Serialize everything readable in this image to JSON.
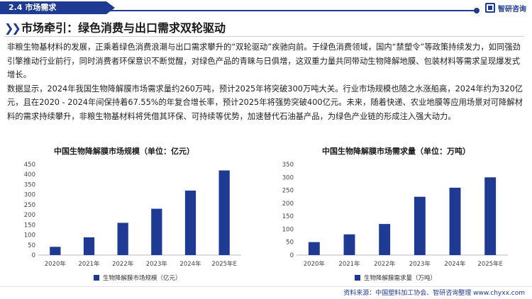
{
  "header": {
    "section_label": "2.4 市场需求",
    "logo_text": "智研咨询"
  },
  "banner": {
    "title": "市场牵引：绿色消费与出口需求双轮驱动"
  },
  "paragraphs": [
    "非粮生物基材料的发展，正乘着绿色消费浪潮与出口需求攀升的“双轮驱动”疾驰向前。于绿色消费领域，国内“禁塑令”等政策持续发力，如同强劲引擎推动行业前行，同时消费者环保意识不断觉醒，对绿色产品的青睐与日俱增，这双重力量共同带动生物降解地膜、包装材料等需求呈现爆发式增长。",
    "数据显示，2024年我国生物降解膜市场需求量约260万吨，预计2025年将突破300万吨大关。行业市场规模也随之水涨船高，2024年约为320亿元，且在2020 - 2024年间保持着67.55%的年复合增长率，预计2025年将强势突破400亿元。未来，随着快递、农业地膜等应用场景对可降解材料的需求持续攀升，非粮生物基材料将凭借其环保、可持续等优势，加速替代石油基产品，为绿色产业链的形成注入强大动力。"
  ],
  "chart_data": [
    {
      "type": "bar",
      "title": "中国生物降解膜市场规模（单位：亿元）",
      "categories": [
        "2020年",
        "2021年",
        "2022年",
        "2023年",
        "2024年",
        "2025年E"
      ],
      "series": [
        {
          "name": "生物降解膜市场规模（亿元）",
          "values": [
            41,
            88,
            160,
            230,
            320,
            420
          ]
        }
      ],
      "ylim": [
        0,
        450
      ],
      "yticks": [
        0,
        50,
        100,
        150,
        200,
        250,
        300,
        350,
        400,
        450
      ],
      "color": "#1f3a93",
      "legend": "bottom"
    },
    {
      "type": "bar",
      "title": "中国生物降解膜市场需求量（单位：万吨）",
      "categories": [
        "2020年",
        "2021年",
        "2022年",
        "2023年",
        "2024年",
        "2025年E"
      ],
      "series": [
        {
          "name": "生物降解膜需求量（万吨）",
          "values": [
            50,
            80,
            120,
            225,
            260,
            300
          ]
        }
      ],
      "ylim": [
        0,
        350
      ],
      "yticks": [
        0,
        50,
        100,
        150,
        200,
        250,
        300,
        350
      ],
      "color": "#1f3a93",
      "legend": "bottom"
    }
  ],
  "footer": {
    "source": "资料来源：中国塑料加工协会、智研咨询整理   www.chyxx.com"
  }
}
